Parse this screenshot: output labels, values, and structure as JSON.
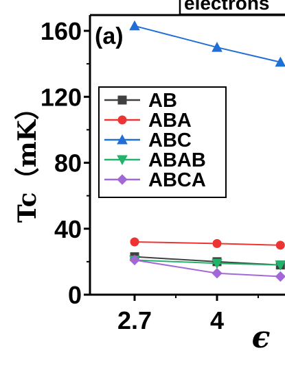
{
  "chart_data": {
    "type": "line",
    "panel_label": "(a)",
    "top_label": "electrons",
    "xlabel": "ϵ",
    "ylabel": "Tc（mK）",
    "x": [
      2.7,
      4,
      5
    ],
    "x_tick_labels": [
      "2.7",
      "4"
    ],
    "y_ticks": [
      0,
      40,
      80,
      120,
      160
    ],
    "y_tick_labels": [
      "0",
      "40",
      "80",
      "120",
      "160"
    ],
    "ylim": [
      0,
      170
    ],
    "legend_placement": "upper-left",
    "series": [
      {
        "name": "AB",
        "color": "#404040",
        "marker": "square",
        "values": [
          23,
          20,
          18
        ]
      },
      {
        "name": "ABA",
        "color": "#ee3333",
        "marker": "circle",
        "values": [
          32,
          31,
          30
        ]
      },
      {
        "name": "ABC",
        "color": "#1f6fd6",
        "marker": "triangle-up",
        "values": [
          163,
          150,
          141
        ]
      },
      {
        "name": "ABAB",
        "color": "#22b36b",
        "marker": "triangle-down",
        "values": [
          21,
          19,
          18
        ]
      },
      {
        "name": "ABCA",
        "color": "#a368d8",
        "marker": "diamond",
        "values": [
          21,
          13,
          11
        ]
      }
    ]
  }
}
